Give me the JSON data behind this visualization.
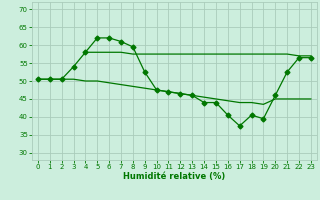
{
  "bg_color": "#cceedd",
  "grid_color": "#aaccbb",
  "line_color": "#007700",
  "xlabel": "Humidité relative (%)",
  "xlabel_color": "#007700",
  "tick_color": "#007700",
  "ylim": [
    28,
    72
  ],
  "xlim": [
    -0.5,
    23.5
  ],
  "yticks": [
    30,
    35,
    40,
    45,
    50,
    55,
    60,
    65,
    70
  ],
  "xticks": [
    0,
    1,
    2,
    3,
    4,
    5,
    6,
    7,
    8,
    9,
    10,
    11,
    12,
    13,
    14,
    15,
    16,
    17,
    18,
    19,
    20,
    21,
    22,
    23
  ],
  "line1_x": [
    0,
    1,
    2,
    3,
    4,
    5,
    6,
    7,
    8,
    9,
    10,
    11,
    12,
    13,
    14,
    15,
    16,
    17,
    18,
    19,
    20,
    21,
    22,
    23
  ],
  "line1_y": [
    50.5,
    50.5,
    50.5,
    54,
    58,
    62,
    62,
    61,
    59.5,
    52.5,
    47.5,
    47,
    46.5,
    46,
    44,
    44,
    40.5,
    37.5,
    40.5,
    39.5,
    46,
    52.5,
    56.5,
    56.5
  ],
  "line2_x": [
    4,
    5,
    6,
    7,
    8,
    9,
    10,
    11,
    12,
    13,
    14,
    15,
    16,
    17,
    18,
    19,
    20,
    21,
    22,
    23
  ],
  "line2_y": [
    58,
    58,
    58,
    58,
    57.5,
    57.5,
    57.5,
    57.5,
    57.5,
    57.5,
    57.5,
    57.5,
    57.5,
    57.5,
    57.5,
    57.5,
    57.5,
    57.5,
    57,
    57
  ],
  "line3_x": [
    0,
    1,
    2,
    3,
    4,
    5,
    6,
    7,
    8,
    9,
    10,
    11,
    12,
    13,
    14,
    15,
    16,
    17,
    18,
    19,
    20,
    21,
    22,
    23
  ],
  "line3_y": [
    50.5,
    50.5,
    50.5,
    50.5,
    50,
    50,
    49.5,
    49,
    48.5,
    48,
    47.5,
    47,
    46.5,
    46,
    45.5,
    45,
    44.5,
    44,
    44,
    43.5,
    45,
    45,
    45,
    45
  ],
  "marker_style": "D",
  "marker_size": 2.5,
  "line_width": 0.9,
  "tick_fontsize": 5.0,
  "xlabel_fontsize": 6.0
}
